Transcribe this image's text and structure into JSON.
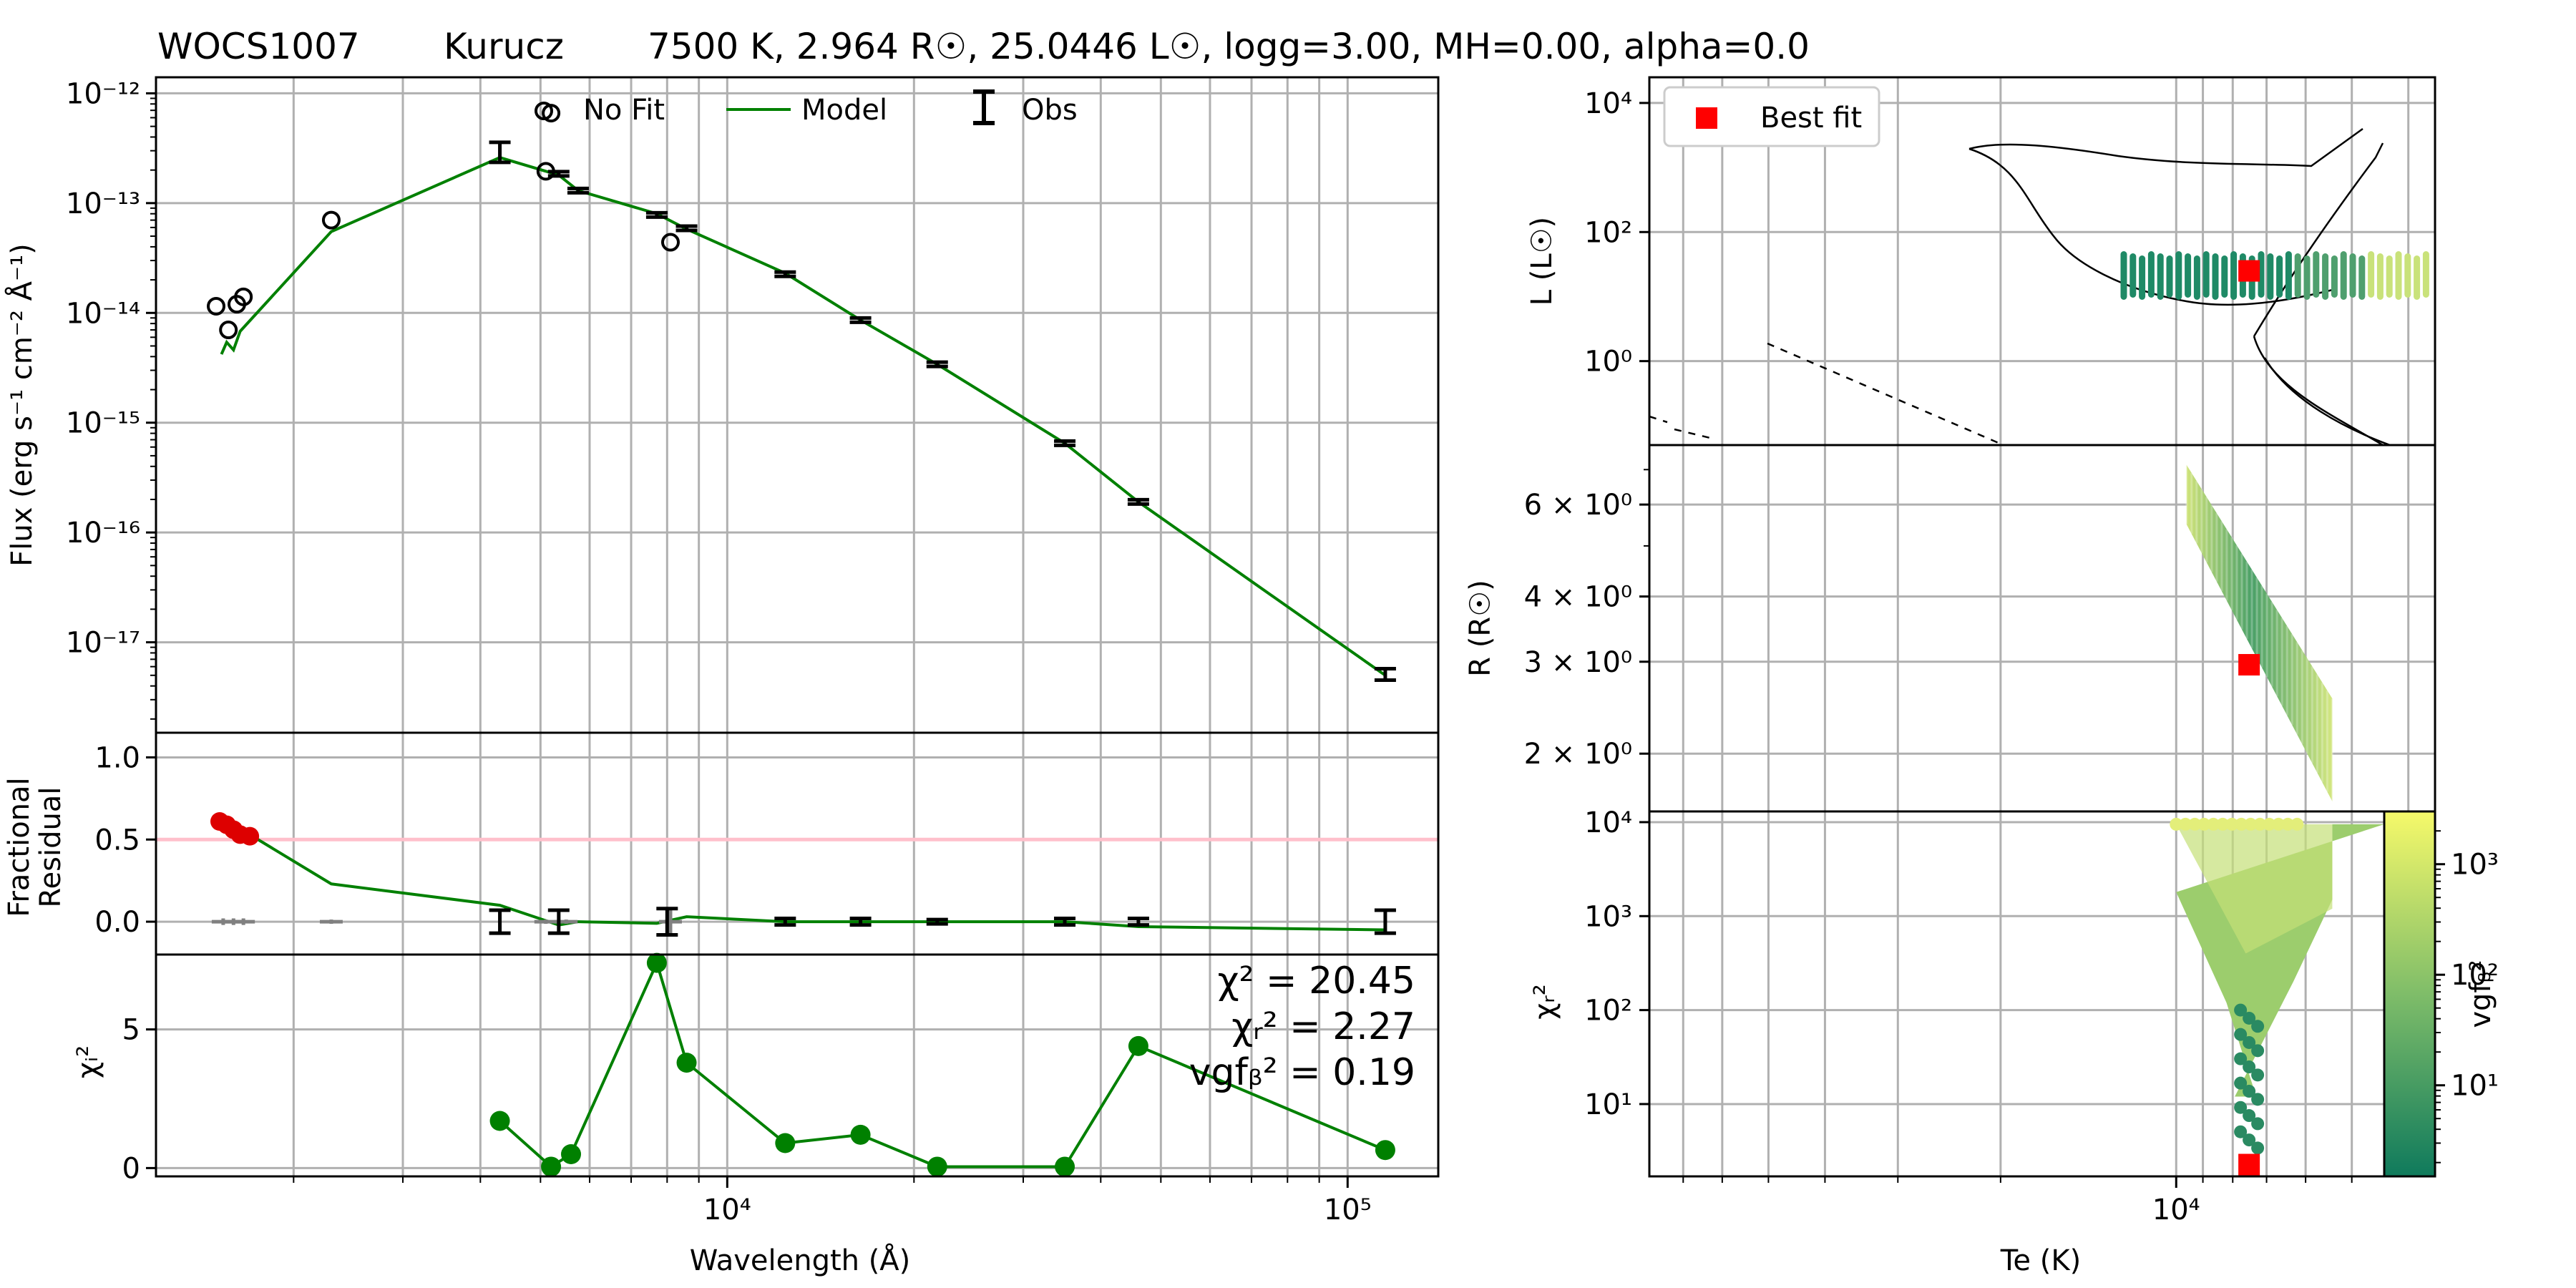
{
  "title": {
    "name": "WOCS1007",
    "model": "Kurucz",
    "params": "7500 K, 2.964 R☉, 25.0446 L☉, logg=3.00, MH=0.00, alpha=0.0"
  },
  "labels": {
    "sed_ylabel": "Flux (erg s⁻¹ cm⁻² Å⁻¹)",
    "res_ylabel_1": "Fractional",
    "res_ylabel_2": "Residual",
    "chi_ylabel": "χᵢ²",
    "xlabel_left": "Wavelength (Å)",
    "l_ylabel": "L (L☉)",
    "r_ylabel": "R (R☉)",
    "chir_ylabel": "χᵣ²",
    "xlabel_right": "Te (K)",
    "cbar_label": "vgfᵦ²"
  },
  "legend_left": {
    "nofit": "No Fit",
    "model": "Model",
    "obs": "Obs"
  },
  "legend_right": {
    "best": "Best fit"
  },
  "stats": {
    "chi2": "χ² = 20.45",
    "chir2": "χᵣ² = 2.27",
    "vgf": "vgfᵦ² = 0.19"
  },
  "ticks": {
    "sed_y": [
      "10⁻¹²",
      "10⁻¹³",
      "10⁻¹⁴",
      "10⁻¹⁵",
      "10⁻¹⁶",
      "10⁻¹⁷"
    ],
    "res_y": [
      "1.0",
      "0.5",
      "0.0"
    ],
    "chi_y": [
      "5",
      "0"
    ],
    "left_x": [
      "10⁴",
      "10⁵"
    ],
    "l_y": [
      "10⁴",
      "10²",
      "10⁰"
    ],
    "r_y": [
      "6 × 10⁰",
      "4 × 10⁰",
      "3 × 10⁰",
      "2 × 10⁰"
    ],
    "chir_y": [
      "10⁴",
      "10³",
      "10²",
      "10¹"
    ],
    "right_x": [
      "10⁴"
    ],
    "cbar": [
      "10³",
      "10²",
      "10¹"
    ]
  },
  "colors": {
    "model": "#008000",
    "obs": "#000000",
    "residual_point": "#dd0000",
    "threshold": "#ffc0cb",
    "best_fit": "#ff0000",
    "cmap_low": "#0f7a5c",
    "cmap_high": "#f6f96a"
  },
  "chart_data": [
    {
      "type": "line",
      "panel": "sed",
      "xscale": "log",
      "yscale": "log",
      "xlim": [
        1200,
        140000
      ],
      "ylim": [
        1.5e-18,
        1.4e-12
      ],
      "series": [
        {
          "name": "Model",
          "style": "line",
          "x": [
            1530,
            1560,
            1600,
            1640,
            2300,
            4300,
            5350,
            5750,
            7700,
            8600,
            12400,
            16400,
            21800,
            35000,
            46000,
            115000
          ],
          "y": [
            4.2e-15,
            5.4e-15,
            4.6e-15,
            6.8e-15,
            5.5e-14,
            2.6e-13,
            1.8e-13,
            1.3e-13,
            8e-14,
            5.8e-14,
            2.3e-14,
            8.6e-15,
            3.4e-15,
            6.5e-16,
            1.9e-16,
            5e-18
          ]
        },
        {
          "name": "Obs",
          "style": "errorbar",
          "x": [
            4300,
            5350,
            5750,
            7700,
            8600,
            12400,
            16400,
            21800,
            35000,
            46000,
            115000
          ],
          "y": [
            2.9e-13,
            1.85e-13,
            1.3e-13,
            7.8e-14,
            5.9e-14,
            2.25e-14,
            8.6e-15,
            3.4e-15,
            6.5e-16,
            1.9e-16,
            5.1e-18
          ]
        },
        {
          "name": "No Fit",
          "style": "open-circle",
          "x": [
            1500,
            1570,
            1620,
            1660,
            2300,
            5100,
            5200,
            8100
          ],
          "y": [
            1.15e-14,
            7e-15,
            1.2e-14,
            1.4e-14,
            7e-14,
            1.95e-13,
            6.6e-13,
            4.4e-14
          ]
        }
      ]
    },
    {
      "type": "line",
      "panel": "residual",
      "xscale": "log",
      "yscale": "linear",
      "xlim": [
        1200,
        140000
      ],
      "ylim": [
        -0.2,
        1.15
      ],
      "threshold": 0.5,
      "series": [
        {
          "name": "Model",
          "style": "line",
          "x": [
            1620,
            1700,
            2300,
            4300,
            5350,
            5750,
            7700,
            8600,
            12400,
            16400,
            21800,
            35000,
            46000,
            115000
          ],
          "y": [
            0.6,
            0.53,
            0.23,
            0.1,
            -0.02,
            0.0,
            -0.01,
            0.03,
            0.0,
            0.0,
            0.0,
            0.0,
            -0.03,
            -0.05
          ]
        },
        {
          "name": "Obs",
          "style": "errorbar",
          "x": [
            4300,
            5350,
            8000,
            12400,
            16400,
            21800,
            35000,
            46000,
            115000
          ],
          "y": [
            0.0,
            0.0,
            0.0,
            0.0,
            0.0,
            0.0,
            0.0,
            0.0,
            0.0
          ],
          "err": [
            0.07,
            0.07,
            0.08,
            0.02,
            0.02,
            0.01,
            0.02,
            0.02,
            0.07
          ]
        },
        {
          "name": "No Fit",
          "style": "grey-errorbar",
          "x": [
            1540,
            1600,
            1660,
            2300,
            5100,
            5500,
            8100
          ],
          "y": [
            0.0,
            0.0,
            0.0,
            0.0,
            0.0,
            0.0,
            0.0
          ],
          "err": [
            0.02,
            0.02,
            0.02,
            0.0,
            0.0,
            0.0,
            0.08
          ]
        },
        {
          "name": "Residual",
          "style": "dot",
          "x": [
            1520,
            1560,
            1600,
            1640,
            1700
          ],
          "y": [
            0.61,
            0.59,
            0.56,
            0.53,
            0.52
          ]
        }
      ]
    },
    {
      "type": "line",
      "panel": "chi",
      "xscale": "log",
      "yscale": "linear",
      "xlim": [
        1200,
        140000
      ],
      "ylim": [
        -0.3,
        7.7
      ],
      "series": [
        {
          "name": "χᵢ²",
          "style": "line-dot",
          "x": [
            4300,
            5200,
            5600,
            7700,
            8600,
            12400,
            16400,
            21800,
            35000,
            46000,
            115000
          ],
          "y": [
            1.7,
            0.05,
            0.5,
            7.4,
            3.8,
            0.9,
            1.2,
            0.05,
            0.05,
            4.4,
            0.65
          ]
        }
      ]
    },
    {
      "type": "scatter",
      "panel": "hr",
      "xscale": "log",
      "yscale": "log",
      "xaxis": "inverted",
      "xlim": [
        80000,
        3600
      ],
      "ylim": [
        0.05,
        25000
      ],
      "series": [
        {
          "name": "grid",
          "style": "bars",
          "tmin": [
            6700,
            7800
          ],
          "lmin": 10,
          "lmax": 45
        },
        {
          "name": "Best fit",
          "style": "square",
          "x": [
            7500
          ],
          "y": [
            25.0
          ]
        }
      ]
    },
    {
      "type": "scatter",
      "panel": "radius",
      "xscale": "log",
      "yscale": "log",
      "xaxis": "inverted",
      "xlim": [
        80000,
        3600
      ],
      "ylim": [
        1.55,
        7.8
      ],
      "series": [
        {
          "name": "grid",
          "style": "band",
          "tmin": 5400,
          "tmax": 9600,
          "rlow": [
            1.6,
            5.5
          ],
          "rhigh": [
            2.6,
            7.2
          ]
        },
        {
          "name": "Best fit",
          "style": "square",
          "x": [
            7500
          ],
          "y": [
            2.96
          ]
        }
      ]
    },
    {
      "type": "scatter",
      "panel": "chi2r",
      "xscale": "log",
      "yscale": "log",
      "xaxis": "inverted",
      "xlim": [
        80000,
        3600
      ],
      "ylim": [
        1.7,
        13000
      ],
      "series": [
        {
          "name": "grid",
          "style": "funnel",
          "tmin": 5400,
          "tmax": 10000
        },
        {
          "name": "Best fit",
          "style": "square",
          "x": [
            7500
          ],
          "y": [
            2.27
          ]
        }
      ],
      "colorbar": {
        "scale": "log",
        "range": [
          1.5,
          3000
        ]
      }
    }
  ]
}
